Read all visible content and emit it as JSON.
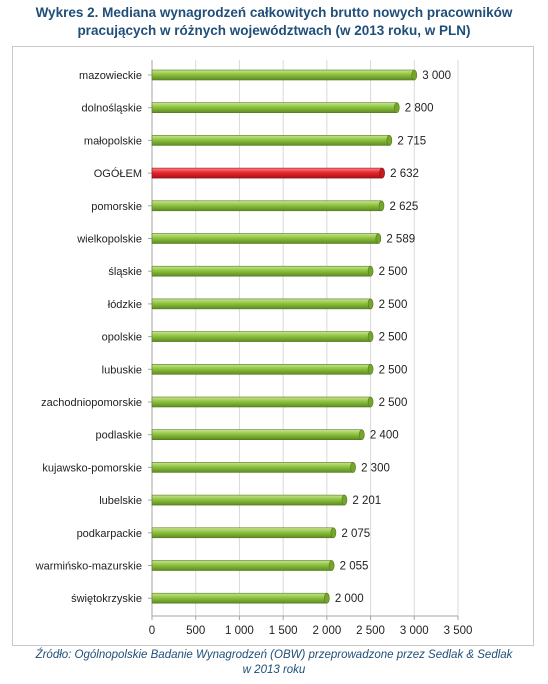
{
  "title_line1": "Wykres 2. Mediana wynagrodzeń całkowitych brutto nowych pracowników",
  "title_line2": "pracujących w różnych województwach (w 2013 roku, w PLN)",
  "source_line1": "Źródło: Ogólnopolskie Badanie Wynagrodzeń (OBW) przeprowadzone przez Sedlak & Sedlak",
  "source_line2": "w 2013 roku",
  "colors": {
    "normal_bar": "#8dc33f",
    "highlight_bar": "#e8262b",
    "grid": "#d9d9d9",
    "axis": "#a6a6a6"
  },
  "chart_data": {
    "type": "bar",
    "orientation": "horizontal",
    "title": "Wykres 2. Mediana wynagrodzeń całkowitych brutto nowych pracowników pracujących w różnych województwach (w 2013 roku, w PLN)",
    "categories": [
      "mazowieckie",
      "dolnośląskie",
      "małopolskie",
      "OGÓŁEM",
      "pomorskie",
      "wielkopolskie",
      "śląskie",
      "łódzkie",
      "opolskie",
      "lubuskie",
      "zachodniopomorskie",
      "podlaskie",
      "kujawsko-pomorskie",
      "lubelskie",
      "podkarpackie",
      "warmińsko-mazurskie",
      "świętokrzyskie"
    ],
    "values": [
      3000,
      2800,
      2715,
      2632,
      2625,
      2589,
      2500,
      2500,
      2500,
      2500,
      2500,
      2400,
      2300,
      2201,
      2075,
      2055,
      2000
    ],
    "value_labels": [
      "3 000",
      "2 800",
      "2 715",
      "2 632",
      "2 625",
      "2 589",
      "2 500",
      "2 500",
      "2 500",
      "2 500",
      "2 500",
      "2 400",
      "2 300",
      "2 201",
      "2 075",
      "2 055",
      "2 000"
    ],
    "highlight_category": "OGÓŁEM",
    "xlim": [
      0,
      3500
    ],
    "x_ticks": [
      0,
      500,
      1000,
      1500,
      2000,
      2500,
      3000,
      3500
    ],
    "x_tick_labels": [
      "0",
      "500",
      "1 000",
      "1 500",
      "2 000",
      "2 500",
      "3 000",
      "3 500"
    ],
    "grid": true,
    "xlabel": "",
    "ylabel": ""
  }
}
